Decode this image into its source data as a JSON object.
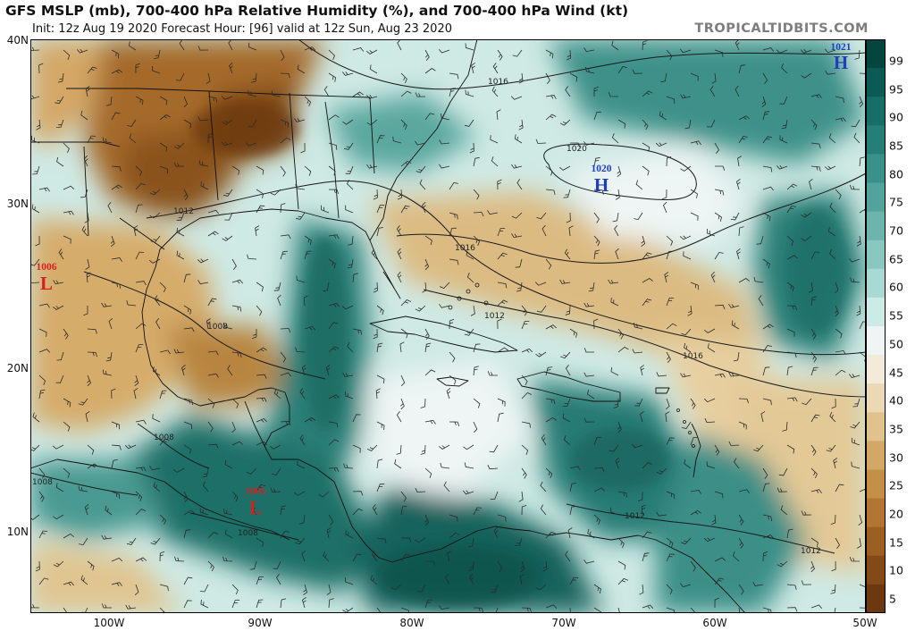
{
  "header": {
    "title": "GFS MSLP (mb), 700-400 hPa Relative Humidity (%), and 700-400 hPa Wind (kt)",
    "subtitle": "Init: 12z Aug 19 2020   Forecast Hour: [96]   valid at 12z Sun, Aug 23 2020",
    "brand": "TROPICALTIDBITS.COM"
  },
  "axes": {
    "lat_labels": [
      "40N",
      "30N",
      "20N",
      "10N"
    ],
    "lon_labels": [
      "100W",
      "90W",
      "80W",
      "70W",
      "60W",
      "50W"
    ]
  },
  "colorbar": {
    "labels": [
      "99",
      "95",
      "90",
      "85",
      "80",
      "75",
      "70",
      "65",
      "60",
      "55",
      "50",
      "45",
      "40",
      "35",
      "30",
      "25",
      "20",
      "15",
      "10",
      "5"
    ],
    "colors": [
      "#04453f",
      "#0b5a53",
      "#166e66",
      "#247f77",
      "#3a9189",
      "#52a39b",
      "#6bb5ad",
      "#89c8c1",
      "#a9d9d3",
      "#cceae6",
      "#eef5f4",
      "#f3ead8",
      "#ecd9b3",
      "#e1c28c",
      "#d3a866",
      "#c48f47",
      "#b27632",
      "#9c5f22",
      "#834a17",
      "#6b380f"
    ]
  },
  "pressure_systems": [
    {
      "type": "H",
      "value": "1021",
      "color": "#1f3fbf"
    },
    {
      "type": "H",
      "value": "1020",
      "color": "#1f3fbf"
    },
    {
      "type": "L",
      "value": "1006",
      "color": "#d62020"
    },
    {
      "type": "L",
      "value": "1005",
      "color": "#d62020"
    }
  ],
  "isobar_labels": [
    "1016",
    "1020",
    "1012",
    "1016",
    "1012",
    "1008",
    "1016",
    "1008",
    "1008",
    "1008",
    "1012",
    "1012"
  ]
}
